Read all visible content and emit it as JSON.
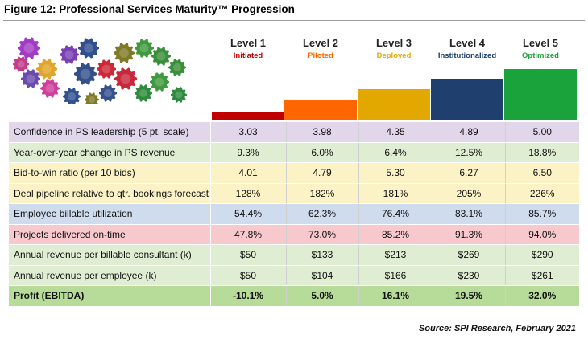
{
  "figure": {
    "title": "Figure 12:  Professional Services Maturity™ Progression"
  },
  "levels": [
    {
      "name": "Level 1",
      "stage": "Initiated",
      "color": "#c00000"
    },
    {
      "name": "Level 2",
      "stage": "Piloted",
      "color": "#ff6600"
    },
    {
      "name": "Level 3",
      "stage": "Deployed",
      "color": "#e3a800"
    },
    {
      "name": "Level 4",
      "stage": "Institutionalized",
      "color": "#1f3f6e"
    },
    {
      "name": "Level 5",
      "stage": "Optimized",
      "color": "#1aa33a"
    }
  ],
  "chart_data": {
    "type": "table",
    "columns": [
      "Level 1",
      "Level 2",
      "Level 3",
      "Level 4",
      "Level 5"
    ],
    "rows": [
      {
        "label": "Confidence in PS leadership (5 pt. scale)",
        "values": [
          "3.03",
          "3.98",
          "4.35",
          "4.89",
          "5.00"
        ],
        "color": "#e2d6ea",
        "bold": false
      },
      {
        "label": "Year-over-year change in PS revenue",
        "values": [
          "9.3%",
          "6.0%",
          "6.4%",
          "12.5%",
          "18.8%"
        ],
        "color": "#dfeed2",
        "bold": false
      },
      {
        "label": "Bid-to-win ratio (per 10 bids)",
        "values": [
          "4.01",
          "4.79",
          "5.30",
          "6.27",
          "6.50"
        ],
        "color": "#fbf2c6",
        "bold": false
      },
      {
        "label": "Deal pipeline relative to qtr. bookings forecast",
        "values": [
          "128%",
          "182%",
          "181%",
          "205%",
          "226%"
        ],
        "color": "#fbf2c6",
        "bold": false
      },
      {
        "label": "Employee billable utilization",
        "values": [
          "54.4%",
          "62.3%",
          "76.4%",
          "83.1%",
          "85.7%"
        ],
        "color": "#cfdcee",
        "bold": false
      },
      {
        "label": "Projects delivered on-time",
        "values": [
          "47.8%",
          "73.0%",
          "85.2%",
          "91.3%",
          "94.0%"
        ],
        "color": "#f7c8cc",
        "bold": false
      },
      {
        "label": "Annual revenue per billable consultant (k)",
        "values": [
          "$50",
          "$133",
          "$213",
          "$269",
          "$290"
        ],
        "color": "#dfeed2",
        "bold": false
      },
      {
        "label": "Annual revenue per employee (k)",
        "values": [
          "$50",
          "$104",
          "$166",
          "$230",
          "$261"
        ],
        "color": "#dfeed2",
        "bold": false
      },
      {
        "label": "Profit (EBITDA)",
        "values": [
          "-10.1%",
          "5.0%",
          "16.1%",
          "19.5%",
          "32.0%"
        ],
        "color": "#b7dc9a",
        "bold": true
      }
    ],
    "maturity_steps": [
      1,
      2,
      3,
      4,
      5
    ]
  },
  "source": "Source: SPI Research, February 2021"
}
